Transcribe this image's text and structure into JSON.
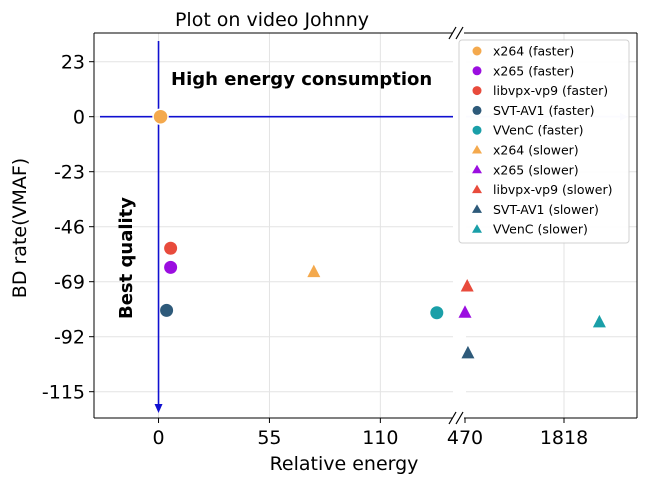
{
  "chart_data": {
    "type": "scatter",
    "title": "Plot on video Johnny",
    "xlabel": "Relative energy",
    "ylabel": "BD rate(VMAF)",
    "annotations": {
      "energy": "High energy consumption",
      "quality": "Best quality"
    },
    "x_ticks": [
      "0",
      "55",
      "110",
      "470",
      "1818"
    ],
    "y_ticks": [
      "23",
      "0",
      "-23",
      "-46",
      "-69",
      "-92",
      "-115"
    ],
    "ylim": [
      -126,
      35
    ],
    "x_axis_break": {
      "left_range": [
        -32,
        149
      ],
      "right_range": [
        0,
        2600
      ],
      "break_label": "//"
    },
    "grid": true,
    "legend_position": "top-right",
    "series": [
      {
        "name": "x264 (faster)",
        "marker": "circle",
        "color": "#f4a94d",
        "x": 1,
        "y": 0
      },
      {
        "name": "x265 (faster)",
        "marker": "circle",
        "color": "#9b0ee0",
        "x": 6,
        "y": -63
      },
      {
        "name": "libvpx-vp9 (faster)",
        "marker": "circle",
        "color": "#e84b3c",
        "x": 6,
        "y": -55
      },
      {
        "name": "SVT-AV1 (faster)",
        "marker": "circle",
        "color": "#2e5a7a",
        "x": 4,
        "y": -81
      },
      {
        "name": "VVenC (faster)",
        "marker": "circle",
        "color": "#1a9fa8",
        "x": 138,
        "y": -82
      },
      {
        "name": "x264 (slower)",
        "marker": "triangle",
        "color": "#f4a94d",
        "x": 77,
        "y": -65
      },
      {
        "name": "x265 (slower)",
        "marker": "triangle",
        "color": "#9b0ee0",
        "x": 470,
        "y": -82
      },
      {
        "name": "libvpx-vp9 (slower)",
        "marker": "triangle",
        "color": "#e84b3c",
        "x": 500,
        "y": -71
      },
      {
        "name": "SVT-AV1 (slower)",
        "marker": "triangle",
        "color": "#2e5a7a",
        "x": 510,
        "y": -99
      },
      {
        "name": "VVenC (slower)",
        "marker": "triangle",
        "color": "#1a9fa8",
        "x": 2300,
        "y": -86
      }
    ],
    "reference_lines_color": "#1010d0"
  }
}
